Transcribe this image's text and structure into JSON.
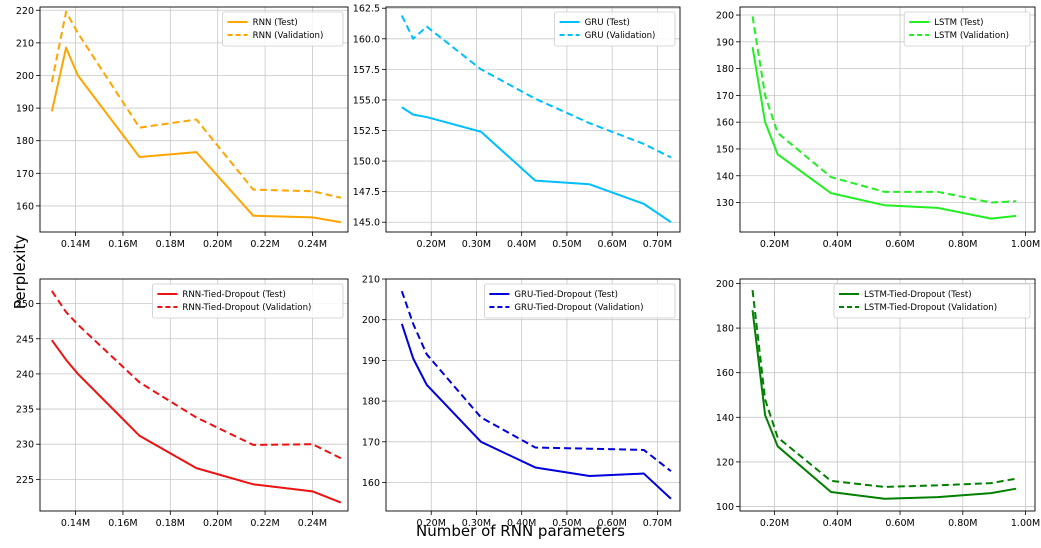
{
  "figure": {
    "ylabel": "Perplexity",
    "xlabel": "Number of RNN parameters"
  },
  "chart_data": [
    {
      "type": "line",
      "xlim": [
        0.125,
        0.255
      ],
      "ylim": [
        152,
        221
      ],
      "xticks": [
        0.14,
        0.16,
        0.18,
        0.2,
        0.22,
        0.24
      ],
      "xticklabels": [
        "0.14M",
        "0.16M",
        "0.18M",
        "0.20M",
        "0.22M",
        "0.24M"
      ],
      "yticks": [
        160,
        170,
        180,
        190,
        200,
        210,
        220
      ],
      "yticklabels": [
        "160",
        "170",
        "180",
        "190",
        "200",
        "210",
        "220"
      ],
      "grid": true,
      "legend": "top-right",
      "series": [
        {
          "name": "RNN (Test)",
          "color": "#ffa500",
          "dash": false,
          "x": [
            0.13,
            0.136,
            0.141,
            0.167,
            0.191,
            0.215,
            0.24,
            0.252
          ],
          "y": [
            189,
            208.5,
            200,
            175,
            176.5,
            157,
            156.5,
            155
          ]
        },
        {
          "name": "RNN (Validation)",
          "color": "#ffa500",
          "dash": true,
          "x": [
            0.13,
            0.136,
            0.141,
            0.167,
            0.191,
            0.215,
            0.24,
            0.252
          ],
          "y": [
            198,
            219.5,
            213,
            184,
            186.5,
            165,
            164.5,
            162.5
          ]
        }
      ]
    },
    {
      "type": "line",
      "xlim": [
        0.1,
        0.75
      ],
      "ylim": [
        144.2,
        162.6
      ],
      "xticks": [
        0.2,
        0.3,
        0.4,
        0.5,
        0.6,
        0.7
      ],
      "xticklabels": [
        "0.20M",
        "0.30M",
        "0.40M",
        "0.50M",
        "0.60M",
        "0.70M"
      ],
      "yticks": [
        145.0,
        147.5,
        150.0,
        152.5,
        155.0,
        157.5,
        160.0,
        162.5
      ],
      "yticklabels": [
        "145.0",
        "147.5",
        "150.0",
        "152.5",
        "155.0",
        "157.5",
        "160.0",
        "162.5"
      ],
      "grid": true,
      "legend": "top-right",
      "series": [
        {
          "name": "GRU (Test)",
          "color": "#00bfff",
          "dash": false,
          "x": [
            0.135,
            0.16,
            0.19,
            0.31,
            0.43,
            0.55,
            0.67,
            0.73
          ],
          "y": [
            154.4,
            153.8,
            153.6,
            152.4,
            148.4,
            148.1,
            146.5,
            145
          ]
        },
        {
          "name": "GRU (Validation)",
          "color": "#00bfff",
          "dash": true,
          "x": [
            0.135,
            0.16,
            0.19,
            0.31,
            0.43,
            0.55,
            0.67,
            0.73
          ],
          "y": [
            161.9,
            160,
            161,
            157.5,
            155.1,
            153.1,
            151.4,
            150.3
          ]
        }
      ]
    },
    {
      "type": "line",
      "xlim": [
        0.09,
        1.03
      ],
      "ylim": [
        119,
        203
      ],
      "xticks": [
        0.2,
        0.4,
        0.6,
        0.8,
        1.0
      ],
      "xticklabels": [
        "0.20M",
        "0.40M",
        "0.60M",
        "0.80M",
        "1.00M"
      ],
      "yticks": [
        130,
        140,
        150,
        160,
        170,
        180,
        190,
        200
      ],
      "yticklabels": [
        "130",
        "140",
        "150",
        "160",
        "170",
        "180",
        "190",
        "200"
      ],
      "grid": true,
      "legend": "top-right",
      "series": [
        {
          "name": "LSTM (Test)",
          "color": "#22ee22",
          "dash": false,
          "x": [
            0.13,
            0.17,
            0.21,
            0.38,
            0.55,
            0.72,
            0.89,
            0.97
          ],
          "y": [
            188,
            160,
            148,
            133.5,
            129,
            128,
            124,
            125
          ]
        },
        {
          "name": "LSTM (Validation)",
          "color": "#22ee22",
          "dash": true,
          "x": [
            0.13,
            0.17,
            0.21,
            0.38,
            0.55,
            0.72,
            0.89,
            0.97
          ],
          "y": [
            199.5,
            170,
            156,
            139.5,
            134,
            134,
            130,
            130.5
          ]
        }
      ]
    },
    {
      "type": "line",
      "xlim": [
        0.125,
        0.255
      ],
      "ylim": [
        220.5,
        253.5
      ],
      "xticks": [
        0.14,
        0.16,
        0.18,
        0.2,
        0.22,
        0.24
      ],
      "xticklabels": [
        "0.14M",
        "0.16M",
        "0.18M",
        "0.20M",
        "0.22M",
        "0.24M"
      ],
      "yticks": [
        225,
        230,
        235,
        240,
        245,
        250
      ],
      "yticklabels": [
        "225",
        "230",
        "235",
        "240",
        "245",
        "250"
      ],
      "grid": true,
      "legend": "top-right",
      "series": [
        {
          "name": "RNN-Tied-Dropout (Test)",
          "color": "#ee1111",
          "dash": false,
          "x": [
            0.13,
            0.136,
            0.141,
            0.167,
            0.191,
            0.215,
            0.24,
            0.252
          ],
          "y": [
            244.8,
            242,
            240,
            231.2,
            226.6,
            224.3,
            223.3,
            221.7
          ]
        },
        {
          "name": "RNN-Tied-Dropout (Validation)",
          "color": "#ee1111",
          "dash": true,
          "x": [
            0.13,
            0.136,
            0.141,
            0.167,
            0.191,
            0.215,
            0.24,
            0.252
          ],
          "y": [
            251.8,
            248.8,
            247,
            238.8,
            233.8,
            229.9,
            230,
            228
          ]
        }
      ]
    },
    {
      "type": "line",
      "xlim": [
        0.1,
        0.75
      ],
      "ylim": [
        153,
        210
      ],
      "xticks": [
        0.2,
        0.3,
        0.4,
        0.5,
        0.6,
        0.7
      ],
      "xticklabels": [
        "0.20M",
        "0.30M",
        "0.40M",
        "0.50M",
        "0.60M",
        "0.70M"
      ],
      "yticks": [
        160,
        170,
        180,
        190,
        200,
        210
      ],
      "yticklabels": [
        "160",
        "170",
        "180",
        "190",
        "200",
        "210"
      ],
      "grid": true,
      "legend": "top-right",
      "series": [
        {
          "name": "GRU-Tied-Dropout (Test)",
          "color": "#0000dd",
          "dash": false,
          "x": [
            0.135,
            0.16,
            0.19,
            0.31,
            0.43,
            0.55,
            0.67,
            0.73
          ],
          "y": [
            199,
            190.5,
            184,
            170,
            163.7,
            161.6,
            162.2,
            156
          ]
        },
        {
          "name": "GRU-Tied-Dropout (Validation)",
          "color": "#0000dd",
          "dash": true,
          "x": [
            0.135,
            0.16,
            0.19,
            0.31,
            0.43,
            0.55,
            0.67,
            0.73
          ],
          "y": [
            207,
            199,
            191.5,
            176,
            168.6,
            168.3,
            168,
            162.8
          ]
        }
      ]
    },
    {
      "type": "line",
      "xlim": [
        0.09,
        1.03
      ],
      "ylim": [
        98,
        202
      ],
      "xticks": [
        0.2,
        0.4,
        0.6,
        0.8,
        1.0
      ],
      "xticklabels": [
        "0.20M",
        "0.40M",
        "0.60M",
        "0.80M",
        "1.00M"
      ],
      "yticks": [
        100,
        120,
        140,
        160,
        180,
        200
      ],
      "yticklabels": [
        "100",
        "120",
        "140",
        "160",
        "180",
        "200"
      ],
      "grid": true,
      "legend": "top-right",
      "series": [
        {
          "name": "LSTM-Tied-Dropout (Test)",
          "color": "#008000",
          "dash": false,
          "x": [
            0.13,
            0.17,
            0.21,
            0.38,
            0.55,
            0.72,
            0.89,
            0.97
          ],
          "y": [
            188,
            141,
            127,
            106.5,
            103.5,
            104.2,
            106,
            108
          ]
        },
        {
          "name": "LSTM-Tied-Dropout (Validation)",
          "color": "#008000",
          "dash": true,
          "x": [
            0.13,
            0.17,
            0.21,
            0.38,
            0.55,
            0.72,
            0.89,
            0.97
          ],
          "y": [
            197,
            148,
            131,
            111.5,
            108.8,
            109.5,
            110.5,
            112.5
          ]
        }
      ]
    }
  ]
}
